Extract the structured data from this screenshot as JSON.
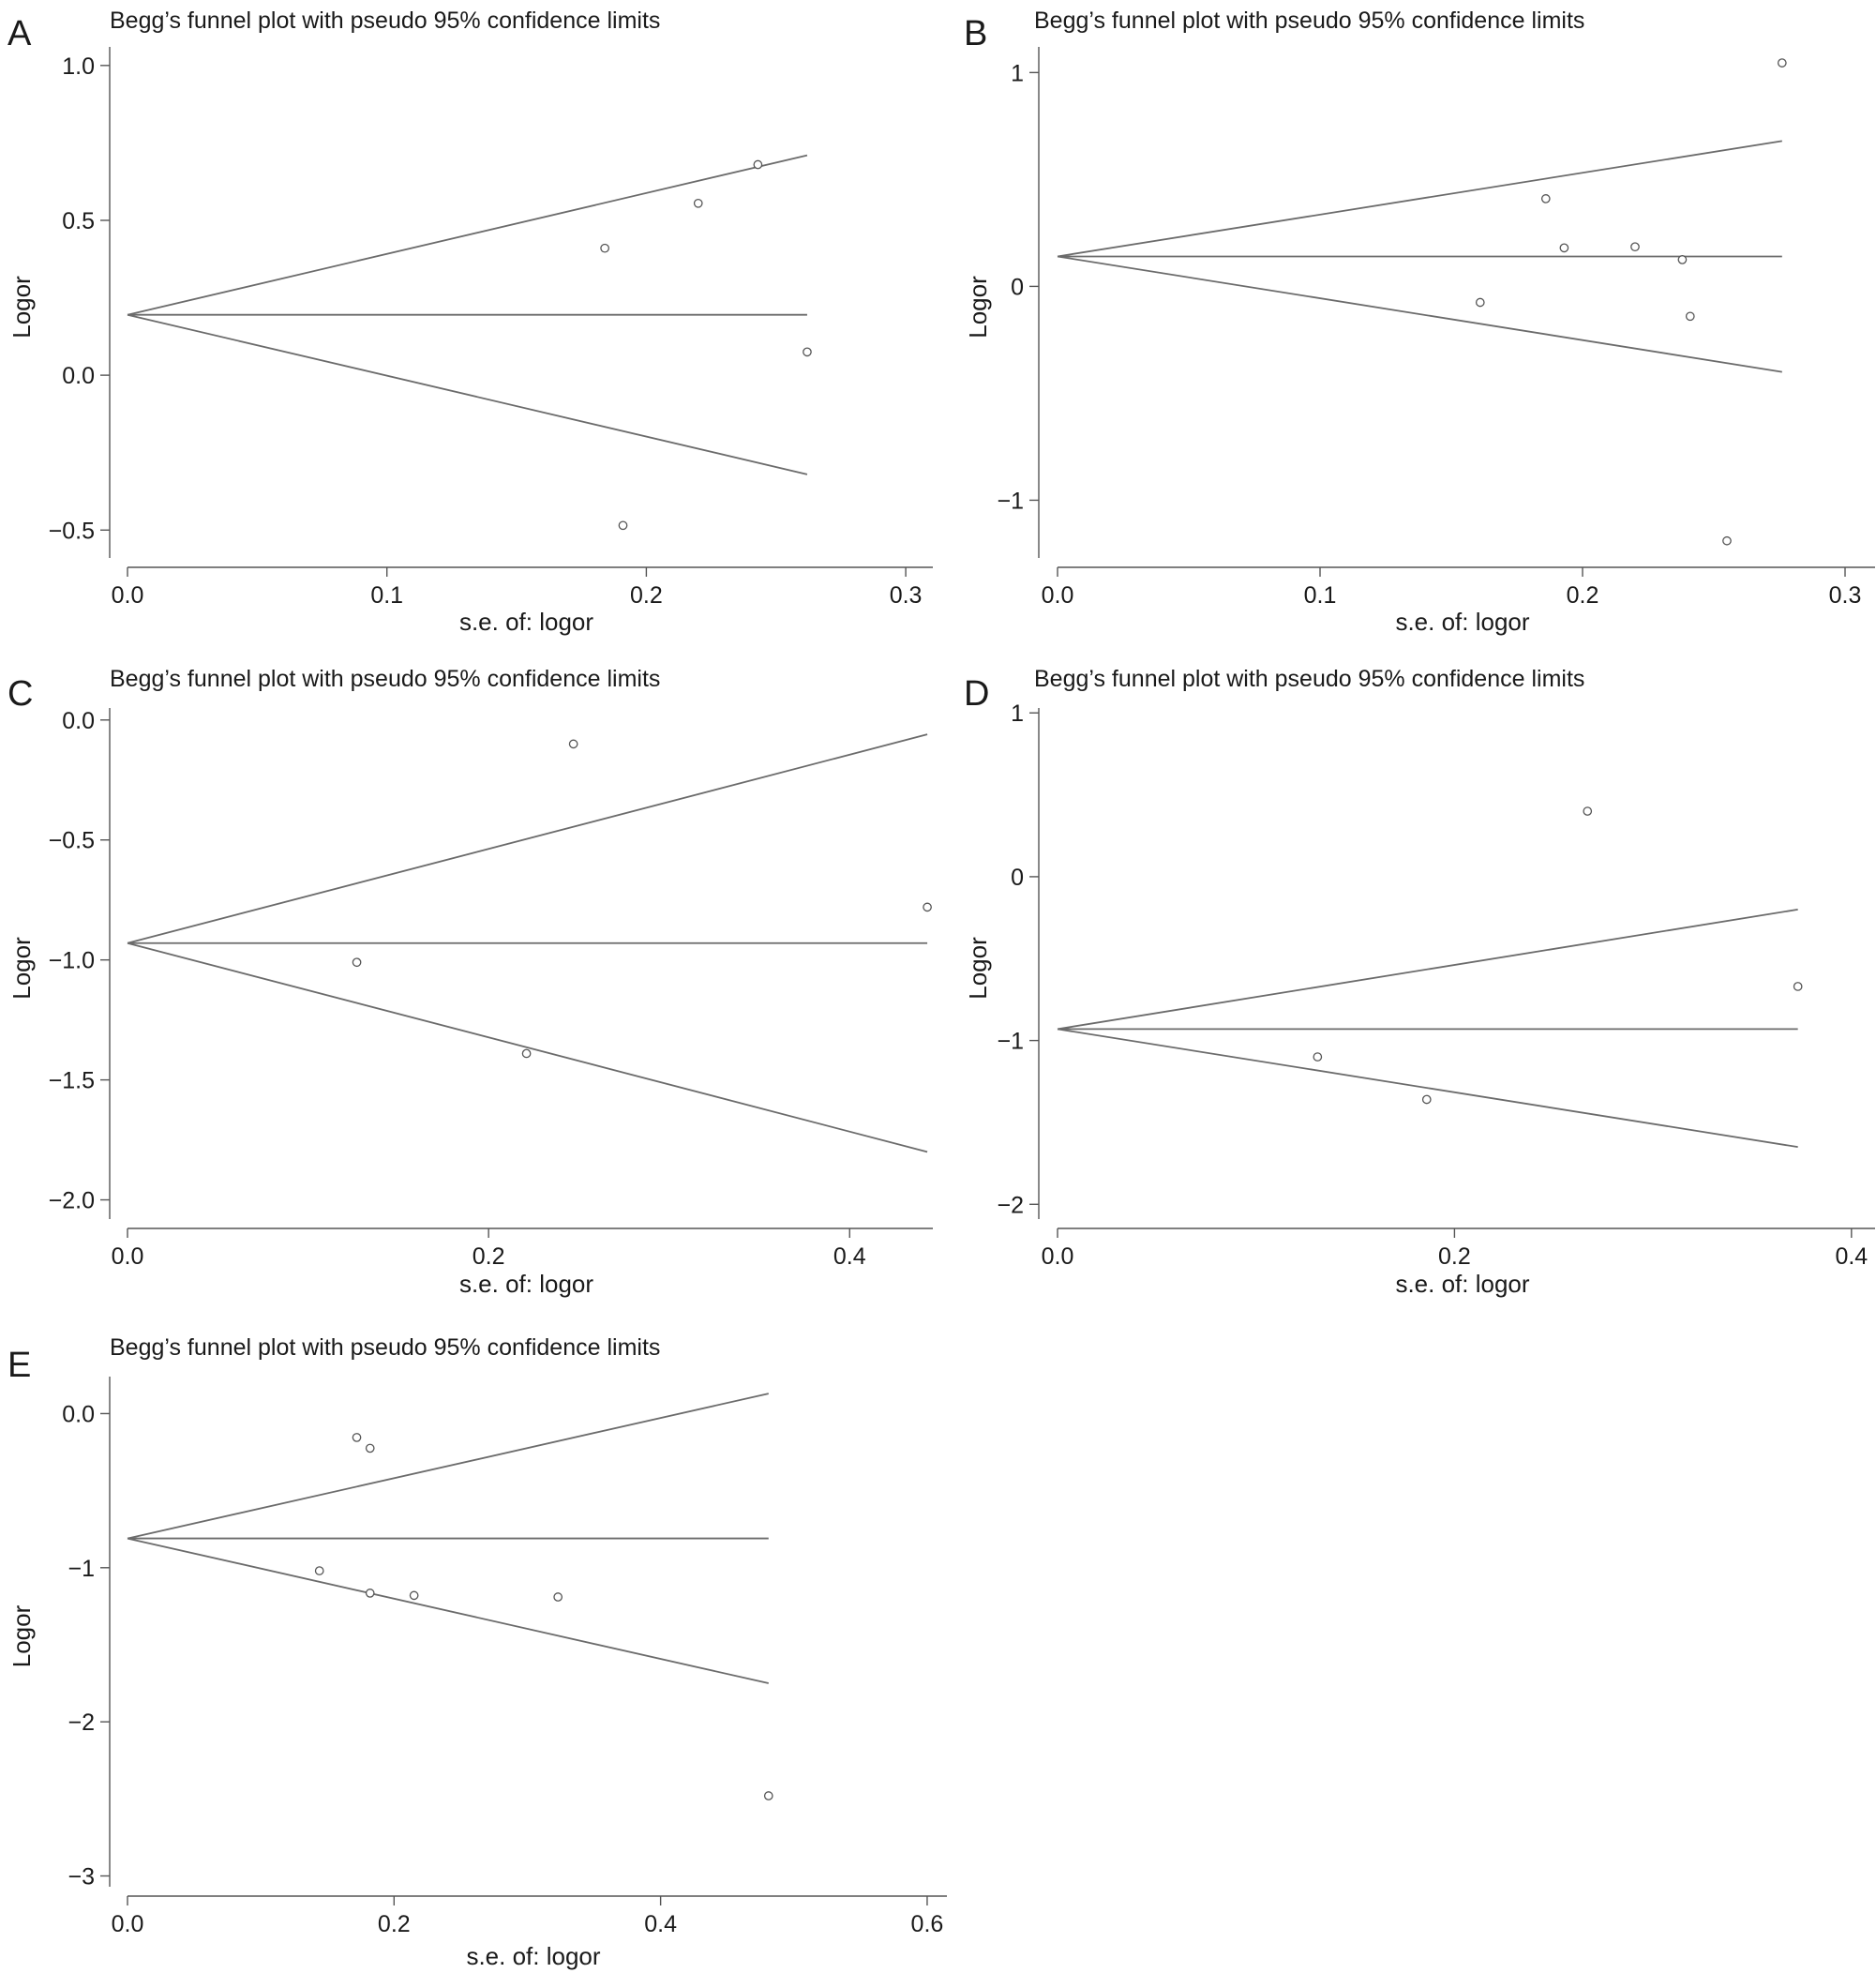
{
  "figure": {
    "colors": {
      "line": "#6b6b6b",
      "axis": "#555555",
      "point": "#555555",
      "background": "#ffffff"
    },
    "panels": [
      {
        "label": "A",
        "title": "Begg’s funnel plot with pseudo 95% confidence limits"
      },
      {
        "label": "B",
        "title": "Begg’s funnel plot with pseudo 95% confidence limits"
      },
      {
        "label": "C",
        "title": "Begg’s funnel plot with pseudo 95% confidence limits"
      },
      {
        "label": "D",
        "title": "Begg’s funnel plot with pseudo 95% confidence limits"
      },
      {
        "label": "E",
        "title": "Begg’s funnel plot with pseudo 95% confidence limits"
      }
    ]
  },
  "chart_data": [
    {
      "panel": "A",
      "type": "scatter",
      "title": "Begg’s funnel plot with pseudo 95% confidence limits",
      "xlabel": "s.e. of: logor",
      "ylabel": "Logor",
      "xlim": [
        0,
        0.3
      ],
      "ylim": [
        -0.5,
        1.0
      ],
      "xticks": [
        0.0,
        0.1,
        0.2,
        0.3
      ],
      "xtick_labels": [
        "0.0",
        "0.1",
        "0.2",
        "0.3"
      ],
      "yticks": [
        1.0,
        0.5,
        0.0,
        -0.5
      ],
      "ytick_labels": [
        "1.0",
        "0.5",
        "0.0",
        "−0.5"
      ],
      "grid": false,
      "pooled_estimate": 0.195,
      "se_max": 0.262,
      "upper_limit_end": 0.71,
      "lower_limit_end": -0.32,
      "points": [
        {
          "x": 0.184,
          "y": 0.41
        },
        {
          "x": 0.191,
          "y": -0.485
        },
        {
          "x": 0.22,
          "y": 0.555
        },
        {
          "x": 0.243,
          "y": 0.68
        },
        {
          "x": 0.262,
          "y": 0.075
        }
      ]
    },
    {
      "panel": "B",
      "type": "scatter",
      "title": "Begg’s funnel plot with pseudo 95% confidence limits",
      "xlabel": "s.e. of: logor",
      "ylabel": "Logor",
      "xlim": [
        0,
        0.3
      ],
      "ylim": [
        -1.2,
        1.1
      ],
      "xticks": [
        0.0,
        0.1,
        0.2,
        0.3
      ],
      "xtick_labels": [
        "0.0",
        "0.1",
        "0.2",
        "0.3"
      ],
      "yticks": [
        1,
        0,
        -1
      ],
      "ytick_labels": [
        "1",
        "0",
        "−1"
      ],
      "grid": false,
      "pooled_estimate": 0.14,
      "se_max": 0.276,
      "upper_limit_end": 0.68,
      "lower_limit_end": -0.4,
      "points": [
        {
          "x": 0.161,
          "y": -0.075
        },
        {
          "x": 0.186,
          "y": 0.41
        },
        {
          "x": 0.193,
          "y": 0.18
        },
        {
          "x": 0.22,
          "y": 0.185
        },
        {
          "x": 0.238,
          "y": 0.125
        },
        {
          "x": 0.241,
          "y": -0.14
        },
        {
          "x": 0.255,
          "y": -1.19
        },
        {
          "x": 0.276,
          "y": 1.045
        }
      ]
    },
    {
      "panel": "C",
      "type": "scatter",
      "title": "Begg’s funnel plot with pseudo 95% confidence limits",
      "xlabel": "s.e. of: logor",
      "ylabel": "Logor",
      "xlim": [
        0,
        0.44
      ],
      "ylim": [
        -2.05,
        0.05
      ],
      "xticks": [
        0.0,
        0.2,
        0.4
      ],
      "xtick_labels": [
        "0.0",
        "0.2",
        "0.4"
      ],
      "yticks": [
        0.0,
        -0.5,
        -1.0,
        -1.5,
        -2.0
      ],
      "ytick_labels": [
        "0.0",
        "−0.5",
        "−1.0",
        "−1.5",
        "−2.0"
      ],
      "grid": false,
      "pooled_estimate": -0.93,
      "se_max": 0.443,
      "upper_limit_end": -0.06,
      "lower_limit_end": -1.8,
      "points": [
        {
          "x": 0.127,
          "y": -1.01
        },
        {
          "x": 0.221,
          "y": -1.39
        },
        {
          "x": 0.247,
          "y": -0.1
        },
        {
          "x": 0.443,
          "y": -0.78
        }
      ]
    },
    {
      "panel": "D",
      "type": "scatter",
      "title": "Begg’s funnel plot with pseudo 95% confidence limits",
      "xlabel": "s.e. of: logor",
      "ylabel": "Logor",
      "xlim": [
        0,
        0.41
      ],
      "ylim": [
        -2.05,
        1.05
      ],
      "xticks": [
        0.0,
        0.2,
        0.4
      ],
      "xtick_labels": [
        "0.0",
        "0.2",
        "0.4"
      ],
      "yticks": [
        1,
        0,
        -1,
        -2
      ],
      "ytick_labels": [
        "1",
        "0",
        "−1",
        "−2"
      ],
      "grid": false,
      "pooled_estimate": -0.93,
      "se_max": 0.373,
      "upper_limit_end": -0.2,
      "lower_limit_end": -1.65,
      "points": [
        {
          "x": 0.131,
          "y": -1.1
        },
        {
          "x": 0.186,
          "y": -1.36
        },
        {
          "x": 0.267,
          "y": 0.4
        },
        {
          "x": 0.373,
          "y": -0.67
        }
      ]
    },
    {
      "panel": "E",
      "type": "scatter",
      "title": "Begg’s funnel plot with pseudo 95% confidence limits",
      "xlabel": "s.e. of: logor",
      "ylabel": "Logor",
      "xlim": [
        0,
        0.61
      ],
      "ylim": [
        -3.05,
        0.25
      ],
      "xticks": [
        0.0,
        0.2,
        0.4,
        0.6
      ],
      "xtick_labels": [
        "0.0",
        "0.2",
        "0.4",
        "0.6"
      ],
      "yticks": [
        0,
        -1,
        -2,
        -3
      ],
      "ytick_labels": [
        "0.0",
        "−1",
        "−2",
        "−3"
      ],
      "grid": false,
      "pooled_estimate": -0.81,
      "se_max": 0.481,
      "upper_limit_end": 0.13,
      "lower_limit_end": -1.75,
      "points": [
        {
          "x": 0.144,
          "y": -1.02
        },
        {
          "x": 0.172,
          "y": -0.155
        },
        {
          "x": 0.182,
          "y": -0.225
        },
        {
          "x": 0.182,
          "y": -1.165
        },
        {
          "x": 0.215,
          "y": -1.18
        },
        {
          "x": 0.323,
          "y": -1.19
        },
        {
          "x": 0.481,
          "y": -2.48
        }
      ]
    }
  ]
}
